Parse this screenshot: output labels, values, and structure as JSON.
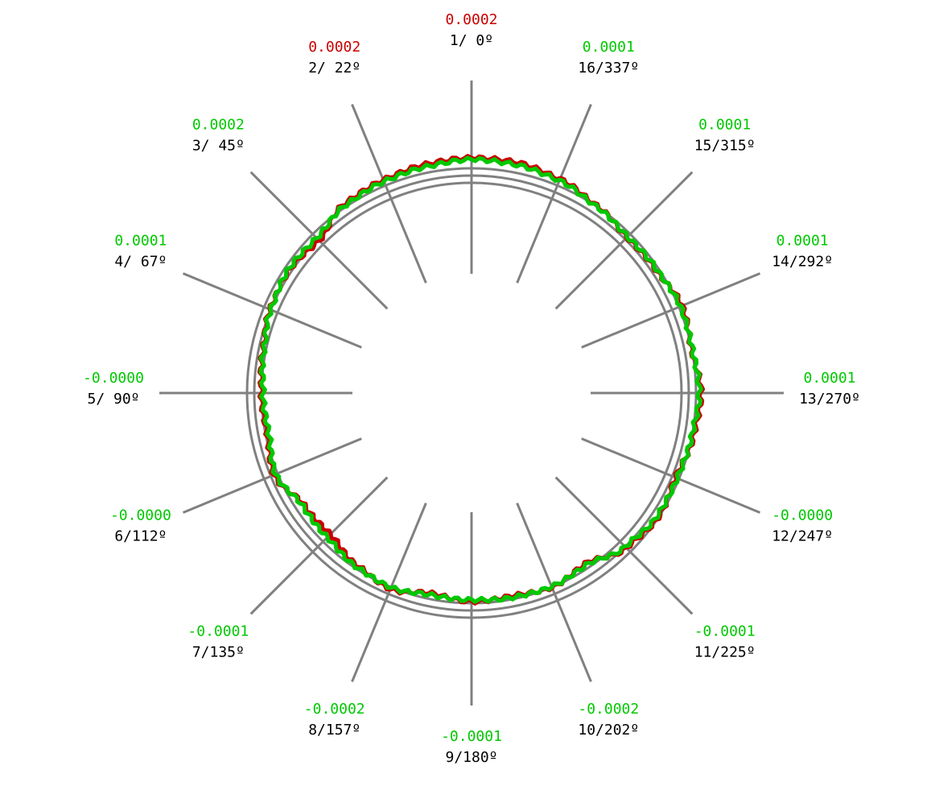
{
  "chart_data": {
    "type": "polar-line",
    "title": "",
    "colors": {
      "spokes": "#808080",
      "rings": "#808080",
      "red_series": "#c80000",
      "green_series": "#00c800",
      "label": "#000000"
    },
    "rings": 3,
    "positions": [
      {
        "index": "1",
        "angle_label": "1/  0º",
        "angle_deg": 0,
        "value": "0.0002",
        "value_color": "red"
      },
      {
        "index": "2",
        "angle_label": "2/ 22º",
        "angle_deg": 22.5,
        "value": "0.0002",
        "value_color": "red"
      },
      {
        "index": "3",
        "angle_label": "3/ 45º",
        "angle_deg": 45,
        "value": "0.0002",
        "value_color": "green"
      },
      {
        "index": "4",
        "angle_label": "4/ 67º",
        "angle_deg": 67.5,
        "value": "0.0001",
        "value_color": "green"
      },
      {
        "index": "5",
        "angle_label": "5/ 90º",
        "angle_deg": 90,
        "value": "-0.0000",
        "value_color": "green"
      },
      {
        "index": "6",
        "angle_label": "6/112º",
        "angle_deg": 112.5,
        "value": "-0.0000",
        "value_color": "green"
      },
      {
        "index": "7",
        "angle_label": "7/135º",
        "angle_deg": 135,
        "value": "-0.0001",
        "value_color": "green"
      },
      {
        "index": "8",
        "angle_label": "8/157º",
        "angle_deg": 157.5,
        "value": "-0.0002",
        "value_color": "green"
      },
      {
        "index": "9",
        "angle_label": "9/180º",
        "angle_deg": 180,
        "value": "-0.0001",
        "value_color": "green"
      },
      {
        "index": "10",
        "angle_label": "10/202º",
        "angle_deg": 202.5,
        "value": "-0.0002",
        "value_color": "green"
      },
      {
        "index": "11",
        "angle_label": "11/225º",
        "angle_deg": 225,
        "value": "-0.0001",
        "value_color": "green"
      },
      {
        "index": "12",
        "angle_label": "12/247º",
        "angle_deg": 247.5,
        "value": "-0.0000",
        "value_color": "green"
      },
      {
        "index": "13",
        "angle_label": "13/270º",
        "angle_deg": 270,
        "value": "0.0001",
        "value_color": "green"
      },
      {
        "index": "14",
        "angle_label": "14/292º",
        "angle_deg": 292.5,
        "value": "0.0001",
        "value_color": "green"
      },
      {
        "index": "15",
        "angle_label": "15/315º",
        "angle_deg": 315,
        "value": "0.0001",
        "value_color": "green"
      },
      {
        "index": "16",
        "angle_label": "16/337º",
        "angle_deg": 337.5,
        "value": "0.0001",
        "value_color": "green"
      }
    ],
    "series": [
      {
        "color": "red",
        "values": [
          0.0002,
          0.00018,
          0.00015,
          0.00012,
          -2e-05,
          3e-05,
          1e-05,
          -5e-05,
          -8e-05,
          -0.0001,
          -4e-05,
          -0.00018,
          -0.0002,
          -0.00012,
          -6e-05,
          -0.00015,
          -0.0001,
          -0.00012,
          -8e-05,
          -0.00014,
          2e-05,
          8e-05,
          4e-05,
          0.0001,
          0.00014,
          8e-05,
          0.00012,
          5e-05,
          3e-05,
          9e-05,
          0.00016,
          0.0002
        ]
      },
      {
        "color": "green",
        "values": [
          0.00018,
          0.00015,
          0.00013,
          0.0001,
          2e-05,
          4e-05,
          0.0,
          -6e-05,
          -0.0001,
          -0.00012,
          -6e-05,
          -0.00016,
          -0.00015,
          -0.0001,
          -8e-05,
          -0.00013,
          -0.00012,
          -0.0001,
          -9e-05,
          -0.00012,
          0.0,
          6e-05,
          6e-05,
          8e-05,
          0.00012,
          9e-05,
          0.0001,
          6e-05,
          4e-05,
          8e-05,
          0.00014,
          0.00017
        ]
      }
    ]
  }
}
